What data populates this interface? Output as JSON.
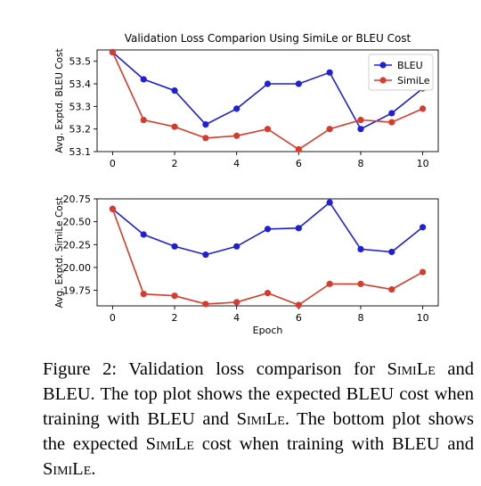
{
  "chart_data": [
    {
      "type": "line",
      "title": "Validation Loss Comparion Using SimiLe or BLEU Cost",
      "xlabel": "",
      "ylabel": "Avg. Exptd. BLEU Cost",
      "x": [
        0,
        1,
        2,
        3,
        4,
        5,
        6,
        7,
        8,
        9,
        10
      ],
      "xticks": [
        0,
        2,
        4,
        6,
        8,
        10
      ],
      "xlim": [
        -0.5,
        10.5
      ],
      "ylim": [
        53.1,
        53.55
      ],
      "yticks": [
        53.1,
        53.2,
        53.3,
        53.4,
        53.5
      ],
      "ytick_labels": [
        "53.1",
        "53.2",
        "53.3",
        "53.4",
        "53.5"
      ],
      "legend": "top-right",
      "grid": false,
      "series": [
        {
          "name": "BLEU",
          "color": "#1f1fd6",
          "values": [
            53.54,
            53.42,
            53.37,
            53.22,
            53.29,
            53.4,
            53.4,
            53.45,
            53.2,
            53.27,
            53.38
          ]
        },
        {
          "name": "SimiLe",
          "color": "#d93a2b",
          "values": [
            53.54,
            53.24,
            53.21,
            53.16,
            53.17,
            53.2,
            53.11,
            53.2,
            53.24,
            53.23,
            53.29
          ]
        }
      ]
    },
    {
      "type": "line",
      "title": "",
      "xlabel": "Epoch",
      "ylabel": "Avg. Exptd. SimiLe Cost",
      "x": [
        0,
        1,
        2,
        3,
        4,
        5,
        6,
        7,
        8,
        9,
        10
      ],
      "xticks": [
        0,
        2,
        4,
        6,
        8,
        10
      ],
      "xlim": [
        -0.5,
        10.5
      ],
      "ylim": [
        19.58,
        20.75
      ],
      "yticks": [
        19.75,
        20.0,
        20.25,
        20.5,
        20.75
      ],
      "ytick_labels": [
        "19.75",
        "20.00",
        "20.25",
        "20.50",
        "20.75"
      ],
      "legend": "none",
      "grid": false,
      "series": [
        {
          "name": "BLEU",
          "color": "#1f1fd6",
          "values": [
            20.64,
            20.36,
            20.23,
            20.14,
            20.23,
            20.42,
            20.43,
            20.71,
            20.2,
            20.17,
            20.44
          ]
        },
        {
          "name": "SimiLe",
          "color": "#d93a2b",
          "values": [
            20.64,
            19.71,
            19.69,
            19.6,
            19.62,
            19.72,
            19.59,
            19.82,
            19.82,
            19.76,
            19.95
          ]
        }
      ]
    }
  ],
  "caption": {
    "p1": "Figure 2:  Validation loss comparison for ",
    "sc1": "SimiLe",
    "p2": " and BLEU. The top plot shows the expected BLEU cost when training with BLEU and ",
    "sc2": "SimiLe",
    "p3": ".  The bottom plot shows the expected ",
    "sc3": "SimiLe",
    "p4": " cost when training with BLEU and ",
    "sc4": "SimiLe",
    "p5": "."
  }
}
